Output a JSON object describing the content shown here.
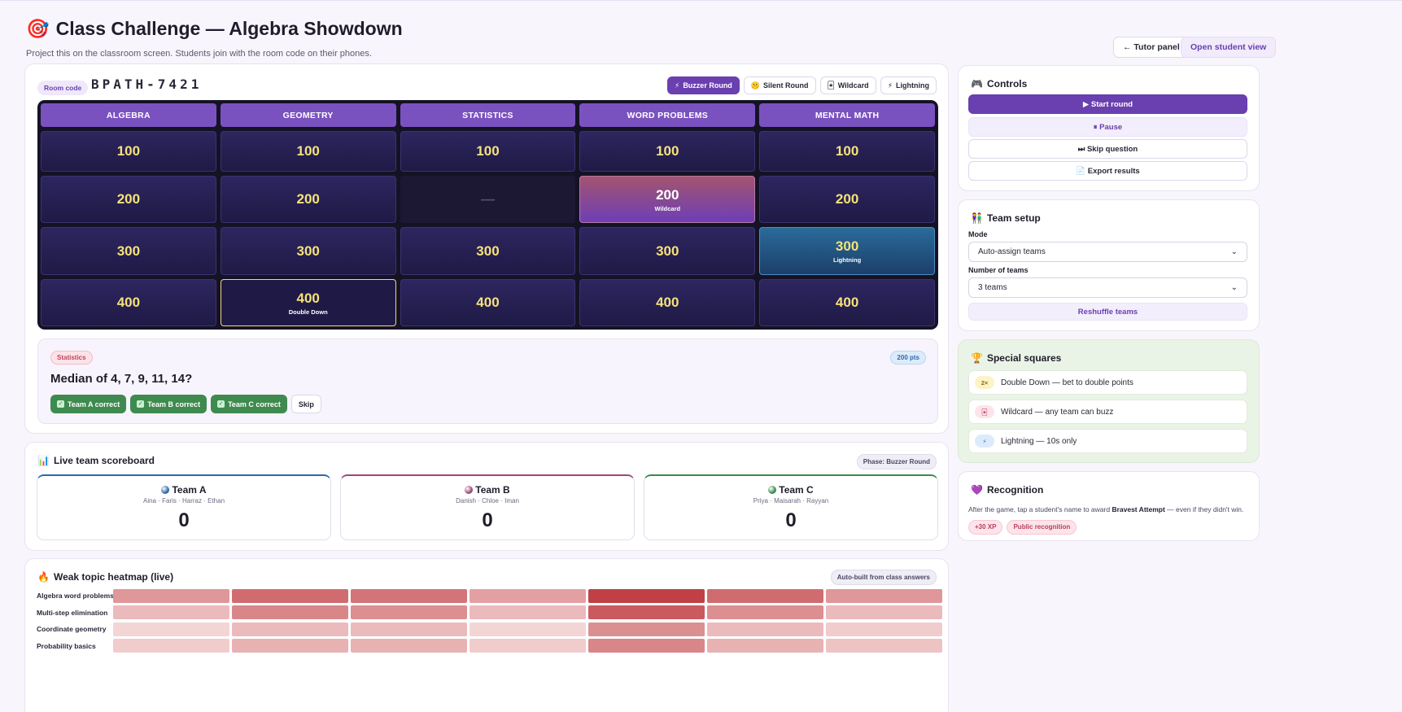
{
  "header": {
    "icon": "🎯",
    "title": "Class Challenge — Algebra Showdown",
    "subtitle": "Project this on the classroom screen. Students join with the room code on their phones.",
    "tutor_panel": "← Tutor panel",
    "student_view": "Open student view"
  },
  "room": {
    "label": "Room code",
    "code": "BPATH-7421"
  },
  "modes": [
    {
      "icon": "⚡",
      "label": "Buzzer Round",
      "active": true
    },
    {
      "icon": "🤫",
      "label": "Silent Round",
      "active": false
    },
    {
      "icon": "🃏",
      "label": "Wildcard",
      "active": false
    },
    {
      "icon": "⚡",
      "label": "Lightning",
      "active": false
    }
  ],
  "board": {
    "categories": [
      "ALGEBRA",
      "GEOMETRY",
      "STATISTICS",
      "WORD PROBLEMS",
      "MENTAL MATH"
    ],
    "rows": [
      [
        {
          "v": "100"
        },
        {
          "v": "100"
        },
        {
          "v": "100"
        },
        {
          "v": "100"
        },
        {
          "v": "100"
        }
      ],
      [
        {
          "v": "200"
        },
        {
          "v": "200"
        },
        {
          "v": "—",
          "state": "used"
        },
        {
          "v": "200",
          "tag": "Wildcard",
          "state": "wild"
        },
        {
          "v": "200"
        }
      ],
      [
        {
          "v": "300"
        },
        {
          "v": "300"
        },
        {
          "v": "300"
        },
        {
          "v": "300"
        },
        {
          "v": "300",
          "tag": "Lightning",
          "state": "light"
        }
      ],
      [
        {
          "v": "400"
        },
        {
          "v": "400",
          "tag": "Double Down",
          "state": "dd"
        },
        {
          "v": "400"
        },
        {
          "v": "400"
        },
        {
          "v": "400"
        }
      ]
    ]
  },
  "question": {
    "category": "Statistics",
    "points": "200 pts",
    "text": "Median of 4, 7, 9, 11, 14?",
    "actions": [
      "Team A correct",
      "Team B correct",
      "Team C correct"
    ],
    "skip": "Skip"
  },
  "scoreboard": {
    "icon": "📊",
    "title": "Live team scoreboard",
    "phase": "Phase:  Buzzer Round",
    "teams": [
      {
        "name": "Team A",
        "members": "Aina · Faris · Harraz · Ethan",
        "score": "0",
        "color": "#2d6aa8"
      },
      {
        "name": "Team B",
        "members": "Danish · Chloe · Iman",
        "score": "0",
        "color": "#9b4a78"
      },
      {
        "name": "Team C",
        "members": "Priya · Maisarah · Rayyan",
        "score": "0",
        "color": "#3b8a4f"
      }
    ]
  },
  "heatmap": {
    "icon": "🔥",
    "title": "Weak topic heatmap (live)",
    "tag": "Auto-built from class answers",
    "rows": [
      {
        "label": "Algebra word problems",
        "levels": [
          0.45,
          0.7,
          0.65,
          0.4,
          0.95,
          0.7,
          0.45
        ]
      },
      {
        "label": "Multi-step elimination",
        "levels": [
          0.25,
          0.55,
          0.5,
          0.25,
          0.8,
          0.5,
          0.25
        ]
      },
      {
        "label": "Coordinate geometry",
        "levels": [
          0.1,
          0.25,
          0.25,
          0.1,
          0.5,
          0.25,
          0.15
        ]
      },
      {
        "label": "Probability basics",
        "levels": [
          0.15,
          0.3,
          0.3,
          0.15,
          0.55,
          0.3,
          0.2
        ]
      }
    ]
  },
  "controls": {
    "icon": "🎮",
    "title": "Controls",
    "start": "▶ Start round",
    "pause": "⏸ Pause",
    "skip": "⏭ Skip question",
    "export": "📄 Export results"
  },
  "team_setup": {
    "icon": "👫",
    "title": "Team setup",
    "mode_label": "Mode",
    "mode_value": "Auto-assign teams",
    "count_label": "Number of teams",
    "count_value": "3 teams",
    "reshuffle": "Reshuffle teams"
  },
  "special_squares": {
    "icon": "🏆",
    "title": "Special squares",
    "items": [
      {
        "badge": "2×",
        "label": "Double Down — bet to double points",
        "bg": "#fdf3c4",
        "fg": "#8a6d12"
      },
      {
        "badge": "🃏",
        "label": "Wildcard — any team can buzz",
        "bg": "#fde3ea",
        "fg": "#b7405d"
      },
      {
        "badge": "⚡",
        "label": "Lightning — 10s only",
        "bg": "#dcebfb",
        "fg": "#2d6aa8"
      }
    ]
  },
  "recognition": {
    "icon": "💜",
    "title": "Recognition",
    "text_pre": "After the game, tap a student's name to award ",
    "text_bold": "Bravest Attempt",
    "text_post": " — even if they didn't win.",
    "pills": [
      "+30 XP",
      "Public recognition"
    ]
  }
}
